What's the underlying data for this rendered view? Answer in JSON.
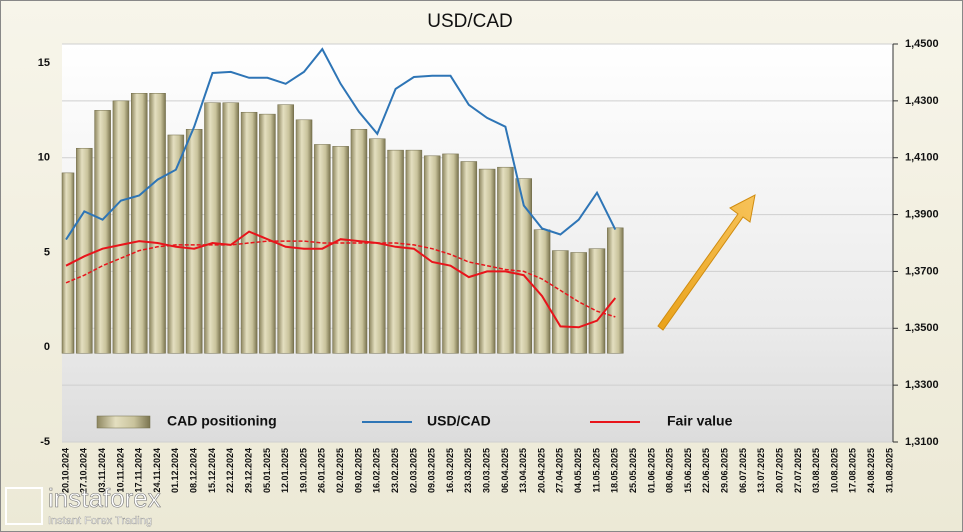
{
  "chart_data": {
    "type": "bar-line",
    "title": "USD/CAD",
    "categories": [
      "20.10.2024",
      "27.10.2024",
      "03.11.2024",
      "10.11.2024",
      "17.11.2024",
      "24.11.2024",
      "01.12.2024",
      "08.12.2024",
      "15.12.2024",
      "22.12.2024",
      "29.12.2024",
      "05.01.2025",
      "12.01.2025",
      "19.01.2025",
      "26.01.2025",
      "02.02.2025",
      "09.02.2025",
      "16.02.2025",
      "23.02.2025",
      "02.03.2025",
      "09.03.2025",
      "16.03.2025",
      "23.03.2025",
      "30.03.2025",
      "06.04.2025",
      "13.04.2025",
      "20.04.2025",
      "27.04.2025",
      "04.05.2025",
      "11.05.2025",
      "18.05.2025",
      "25.05.2025",
      "01.06.2025",
      "08.06.2025",
      "15.06.2025",
      "22.06.2025",
      "29.06.2025",
      "06.07.2025",
      "13.07.2025",
      "20.07.2025",
      "27.07.2025",
      "03.08.2025",
      "10.08.2025",
      "17.08.2025",
      "24.08.2025",
      "31.08.2025"
    ],
    "series": [
      {
        "name": "CAD positioning",
        "type": "bar",
        "color": "#c9c39c",
        "values": [
          9.2,
          10.5,
          12.5,
          13.0,
          13.4,
          13.4,
          11.2,
          11.5,
          12.9,
          12.9,
          12.4,
          12.3,
          12.8,
          12.0,
          10.7,
          10.6,
          11.5,
          11.0,
          10.4,
          10.4,
          10.1,
          10.2,
          9.8,
          9.4,
          9.5,
          8.9,
          6.2,
          5.1,
          5.0,
          5.2,
          6.3,
          null,
          null,
          null,
          null,
          null,
          null,
          null,
          null,
          null,
          null,
          null,
          null,
          null,
          null,
          null
        ]
      },
      {
        "name": "USD/CAD",
        "type": "line",
        "axis": "y2",
        "color": "#2e75b6",
        "values": [
          1.3812,
          1.3911,
          1.3882,
          1.3949,
          1.3967,
          1.4023,
          1.4058,
          1.4209,
          1.4398,
          1.4402,
          1.4381,
          1.4381,
          1.436,
          1.4402,
          1.4482,
          1.436,
          1.4261,
          1.4184,
          1.4342,
          1.4384,
          1.4388,
          1.4388,
          1.4286,
          1.424,
          1.4209,
          1.3932,
          1.3851,
          1.383,
          1.3882,
          1.3977,
          1.3847,
          null,
          null,
          null,
          null,
          null,
          null,
          null,
          null,
          null,
          null,
          null,
          null,
          null,
          null,
          null
        ]
      },
      {
        "name": "Fair value",
        "type": "line",
        "color": "#e8141b",
        "values": [
          4.3,
          4.8,
          5.2,
          5.4,
          5.6,
          5.5,
          5.3,
          5.2,
          5.5,
          5.4,
          6.1,
          5.7,
          5.3,
          5.2,
          5.2,
          5.7,
          5.6,
          5.5,
          5.3,
          5.2,
          4.5,
          4.3,
          3.7,
          4.0,
          4.0,
          3.8,
          2.7,
          1.1,
          1.05,
          1.4,
          2.6,
          null,
          null,
          null,
          null,
          null,
          null,
          null,
          null,
          null,
          null,
          null,
          null,
          null,
          null,
          null
        ]
      },
      {
        "type": "line",
        "dashed": true,
        "color": "#e8141b",
        "values": [
          3.4,
          3.8,
          4.3,
          4.7,
          5.1,
          5.3,
          5.4,
          5.4,
          5.4,
          5.4,
          5.5,
          5.6,
          5.6,
          5.6,
          5.5,
          5.5,
          5.5,
          5.5,
          5.5,
          5.4,
          5.2,
          4.9,
          4.5,
          4.3,
          4.1,
          4.0,
          3.6,
          3.0,
          2.4,
          1.9,
          1.6,
          null,
          null,
          null,
          null,
          null,
          null,
          null,
          null,
          null,
          null,
          null,
          null,
          null,
          null,
          null
        ]
      }
    ],
    "ylim": [
      -5,
      16
    ],
    "yticks": [
      -5,
      0,
      5,
      10,
      15
    ],
    "y2lim": [
      1.31,
      1.45
    ],
    "y2ticks": [
      {
        "value": 1.31,
        "label": "1,3100"
      },
      {
        "value": 1.33,
        "label": "1,3300"
      },
      {
        "value": 1.35,
        "label": "1,3500"
      },
      {
        "value": 1.37,
        "label": "1,3700"
      },
      {
        "value": 1.39,
        "label": "1,3900"
      },
      {
        "value": 1.41,
        "label": "1,4100"
      },
      {
        "value": 1.43,
        "label": "1,4300"
      },
      {
        "value": 1.45,
        "label": "1,4500"
      }
    ],
    "grid": true,
    "legend": "bottom"
  },
  "watermark": {
    "brand": "instaforex",
    "tagline": "Instant Forex Trading"
  }
}
